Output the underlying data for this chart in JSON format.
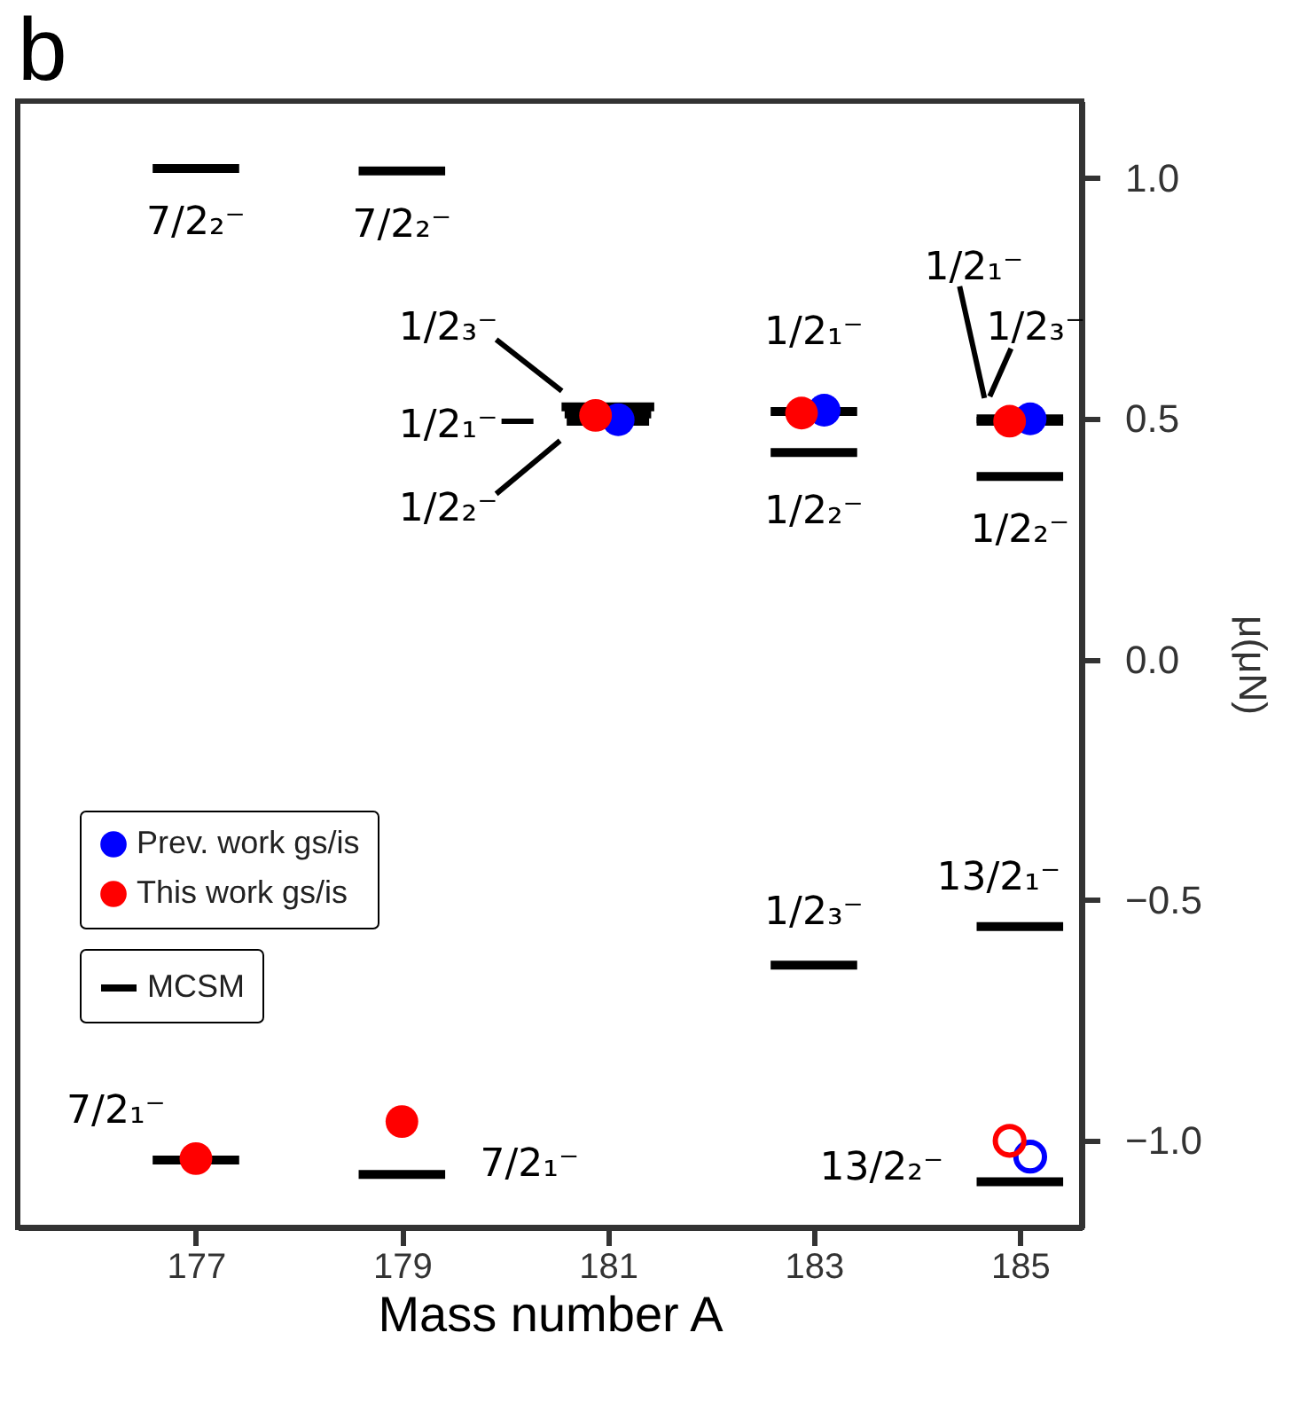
{
  "chart_data": {
    "type": "scatter",
    "title": "b",
    "xlabel": "Mass number A",
    "ylabel": "μ(μN)",
    "xlim": [
      175.27,
      185.6
    ],
    "xticks": [
      177,
      179,
      181,
      183,
      185
    ],
    "ylim": [
      -1.18,
      1.16
    ],
    "yticks": [
      {
        "value": -1.0,
        "label": "−1.0"
      },
      {
        "value": -0.5,
        "label": "−0.5"
      },
      {
        "value": 0.0,
        "label": "0.0"
      },
      {
        "value": 0.5,
        "label": "0.5"
      },
      {
        "value": 1.0,
        "label": "1.0"
      }
    ],
    "grid": false,
    "legend": "left",
    "series": [
      {
        "name": "Prev. work gs/is",
        "color": "#0000ff",
        "marker": "circle",
        "x": [
          181.1,
          183.1,
          185.1
        ],
        "values": [
          0.498,
          0.518,
          0.5
        ]
      },
      {
        "color": "#0000ff",
        "marker": "circle",
        "x": [
          185.1
        ],
        "values": [
          -1.033
        ]
      },
      {
        "name": "This work gs/is",
        "color": "#ff0000",
        "marker": "circle",
        "x": [
          177,
          179,
          180.88,
          182.88,
          184.9
        ],
        "values": [
          -1.037,
          -0.96,
          0.507,
          0.512,
          0.495
        ],
        "errors": [
          0.03,
          null,
          null,
          null,
          null
        ]
      },
      {
        "color": "#ff0000",
        "marker": "circle",
        "x": [
          184.9
        ],
        "values": [
          -1.0
        ]
      },
      {
        "name": "MCSM",
        "type": "line",
        "color": "#000000",
        "marker": "none",
        "line_style": "solid",
        "x": [
          176.58,
          177.42
        ],
        "values": [
          1.02,
          1.02
        ]
      },
      {
        "type": "line",
        "color": "#000000",
        "marker": "none",
        "line_style": "solid",
        "x": [
          176.58,
          177.42
        ],
        "values": [
          -1.04,
          -1.04
        ]
      },
      {
        "type": "line",
        "color": "#000000",
        "marker": "none",
        "line_style": "solid",
        "x": [
          178.58,
          179.42
        ],
        "values": [
          1.015,
          1.015
        ]
      },
      {
        "type": "line",
        "color": "#000000",
        "marker": "none",
        "line_style": "solid",
        "x": [
          178.58,
          179.42
        ],
        "values": [
          -1.07,
          -1.07
        ]
      },
      {
        "type": "line",
        "color": "#000000",
        "marker": "none",
        "line_style": "solid",
        "x": [
          180.55,
          181.45
        ],
        "values": [
          0.525,
          0.525
        ]
      },
      {
        "type": "line",
        "color": "#000000",
        "marker": "none",
        "line_style": "solid",
        "x": [
          180.58,
          181.42
        ],
        "values": [
          0.51,
          0.51
        ]
      },
      {
        "type": "line",
        "color": "#000000",
        "marker": "none",
        "line_style": "solid",
        "x": [
          180.6,
          181.4
        ],
        "values": [
          0.495,
          0.495
        ]
      },
      {
        "type": "line",
        "color": "#000000",
        "marker": "none",
        "line_style": "solid",
        "x": [
          182.58,
          183.42
        ],
        "values": [
          0.515,
          0.515
        ]
      },
      {
        "type": "line",
        "color": "#000000",
        "marker": "none",
        "line_style": "solid",
        "x": [
          182.58,
          183.42
        ],
        "values": [
          0.43,
          0.43
        ]
      },
      {
        "type": "line",
        "color": "#000000",
        "marker": "none",
        "line_style": "solid",
        "x": [
          182.58,
          183.42
        ],
        "values": [
          -0.635,
          -0.635
        ]
      },
      {
        "type": "line",
        "color": "#000000",
        "marker": "none",
        "line_style": "solid",
        "x": [
          184.58,
          185.42
        ],
        "values": [
          0.5,
          0.5
        ]
      },
      {
        "type": "line",
        "color": "#000000",
        "marker": "none",
        "line_style": "solid",
        "x": [
          184.58,
          185.42
        ],
        "values": [
          0.495,
          0.495
        ]
      },
      {
        "type": "line",
        "color": "#000000",
        "marker": "none",
        "line_style": "solid",
        "x": [
          184.58,
          185.42
        ],
        "values": [
          0.38,
          0.38
        ]
      },
      {
        "type": "line",
        "color": "#000000",
        "marker": "none",
        "line_style": "solid",
        "x": [
          184.58,
          185.42
        ],
        "values": [
          -0.555,
          -0.555
        ]
      },
      {
        "type": "line",
        "color": "#000000",
        "marker": "none",
        "line_style": "solid",
        "x": [
          184.58,
          185.42
        ],
        "values": [
          -1.085,
          -1.085
        ]
      }
    ],
    "annotations": [
      {
        "text": "7/2₂⁻",
        "x": 177,
        "y": 1.02
      },
      {
        "text": "7/2₂⁻",
        "x": 179,
        "y": 1.015
      },
      "1/2₃⁻",
      {
        "text": "1/2₁⁻",
        "x": 181,
        "y": 0.495
      },
      "1/2₂⁻",
      {
        "text": "1/2₁⁻",
        "x": 183,
        "y": 0.515
      },
      {
        "text": "1/2₂⁻",
        "x": 183,
        "y": 0.43
      },
      {
        "text": "1/2₃⁻",
        "x": 183,
        "y": -0.635
      },
      "1/2₁⁻",
      {
        "text": "1/2₃⁻",
        "x": 185,
        "y": 0.495
      },
      {
        "text": "1/2₂⁻",
        "x": 185,
        "y": 0.38
      },
      {
        "text": "13/2₁⁻",
        "x": 185,
        "y": -0.555
      },
      {
        "text": "13/2₂⁻",
        "x": 185,
        "y": -1.085
      },
      {
        "text": "7/2₁⁻",
        "x": 177,
        "y": -1.04
      },
      {
        "text": "7/2₁⁻",
        "x": 179,
        "y": -1.07
      }
    ]
  }
}
